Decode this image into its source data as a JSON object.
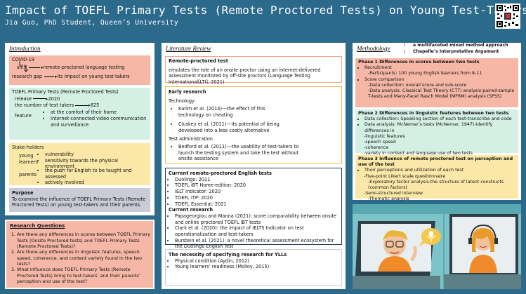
{
  "header": {
    "title": "Impact of TOEFL Primary Tests (Remote Proctored Tests) on Young Test-Takers",
    "author": "Jia Guo, PhD Student, Queen’s University"
  },
  "intro": {
    "heading": "Introduction",
    "covid": {
      "root": "COVID-19",
      "shift": "shift",
      "shift_to": "remote-proctored language testing",
      "gap": "research gap",
      "gap_to": "its impact on young test-takers"
    },
    "toefl": {
      "title": "TOEFL Primary Tests (Remote Proctored Tests)",
      "release": "release",
      "release_val": "2020",
      "takers": "the number of test takers",
      "takers_val": "825",
      "feature": "feature",
      "f1": "at the comfort of their home",
      "f2": "Internet-connected video communication and surveillance"
    },
    "stake": {
      "title": "Stake-holders",
      "young": "young learners",
      "y1": "vulnerability",
      "y2": "sensitivity towards the physical environment",
      "parents": "parents",
      "p1": "the push for English to be taught and assessed",
      "p2": "actively involved"
    },
    "purpose": {
      "title": "Purpose",
      "text": "To examine the influence of TOEFL Primary Tests (Remote Proctored Tests) on young test-takers and their parents."
    }
  },
  "rq": {
    "title": "Research Questions",
    "items": [
      "Are there any differences in scores between TOEFL Primary Tests (Onsite Proctored tests) and TOEFL Primary Tests (Remote Proctored Tests)?",
      "Are there any differences in linguistic features, speech speed, coherence, and content variety found in the two tests?",
      "What influence does TOEFL Primary Tests (Remote Proctored Tests) bring to test-takers’ and their parents’ perception and use of the test?"
    ]
  },
  "lit": {
    "heading": "Literature Review",
    "rpt": {
      "title": "Remote-proctored test",
      "text": "emulates the role of an onsite proctor using an internet-delivered assessment monitored by off-site proctors (Language Testing International[LTI], 2021)"
    },
    "early": {
      "title": "Early research",
      "tech": "Technology",
      "t1": "Karim et al. (2014)---the effect of this technology on cheating",
      "t2": "Cluskey et al. (2011)---its potential of being developed into a less costly alternative",
      "admin": "Test administration",
      "a1": "Bedford et al. (2011)---the usability of test-takers to launch the testing system and take the test without onsite assistance"
    },
    "current": {
      "title": "Current remote-proctored English tests",
      "tests": [
        "Duolingo: 2011",
        "TOEFL iBT Home-edition: 2020",
        "IELT Indicator: 2020",
        "TOEFL ITP: 2020",
        "TOEFL Essential: 2021"
      ],
      "research_title": "Current research",
      "research": [
        "Papageorgiou and Manna (2021): score comparability between onsite and online proctored TOEFL iBT tests",
        "Clark et al. (2020): the impact of IELTS Indicator on test operationalization and test-takers",
        "Burstein et al. (2021): a novel theoretical assessment ecosystem for the Duolingo English Test"
      ]
    },
    "necessity": {
      "title": "The necessity of specifying research for YLLs",
      "items": [
        "Physical condition (Aydin, 2012)",
        "Young learners’ readiness (Molloy, 2015)"
      ]
    }
  },
  "method": {
    "heading": "Methodology",
    "notes": [
      "a multifaceted mixed method approach",
      "Chapelle’s Interpretative Argument"
    ],
    "p1": {
      "title": "Phase 1  Differences in scores between two tests",
      "lines": [
        "Recruitment",
        "-Participants: 100 young English learners from 8-11",
        "Score comparison",
        "-Data collection: overall score and sub-score",
        "-Data analysis: Classical Test Theory (CTT) analysis-paired-sample T-tests and Many-Facet Rasch Model (MFRM) analysis (SPSS)"
      ]
    },
    "p2": {
      "title": "Phase 2 Differences in linguistic features between two tests",
      "lines": [
        "Data collection:  Speaking section of each test-transcribe and code",
        "Data analysis: McNemar’s tests (McNemar, 1947)-identify differences in",
        "-linguistic features",
        "-speech speed",
        "-coherence",
        "-variety in content and language use of two tests"
      ]
    },
    "p3": {
      "title": "Phase 3 Influence of remote proctored test on perception and use of the test",
      "lines": [
        "Their perceptions and utilization of each test",
        "-Five-point Likert scale questionnaire",
        "-Exploratory factor analysis-the structure of latent constructs (common factors)",
        "-Semi-structured interview",
        "-Thematic analysis"
      ]
    }
  },
  "colors": {
    "bg": "#2c6a8c",
    "salmon": "#f6b7a6",
    "mint": "#d4efe4",
    "yellow": "#fbe8a8",
    "grey": "#c9ccd6",
    "gold": "#e8c14a",
    "navy": "#1e3a5f"
  }
}
